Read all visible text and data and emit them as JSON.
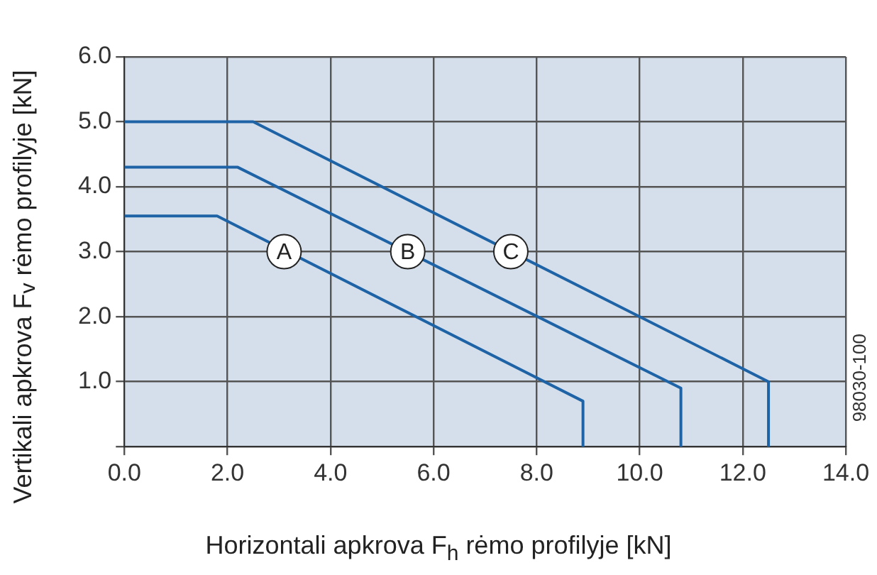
{
  "chart_data": {
    "type": "line",
    "xlabel": "Horizontali apkrova F$_{h}$ rėmo profilyje [kN]",
    "ylabel": "Vertikali apkrova F$_{v}$ rėmo profilyje [kN]",
    "series": [
      {
        "color": "#1d63a6",
        "x": [
          0,
          1.8,
          8.9,
          8.9
        ],
        "values": [
          3.55,
          3.55,
          0.7,
          0
        ]
      },
      {
        "color": "#1d63a6",
        "x": [
          0,
          2.2,
          10.8,
          10.8
        ],
        "values": [
          4.3,
          4.3,
          0.9,
          0
        ]
      },
      {
        "color": "#1d63a6",
        "x": [
          0,
          2.5,
          12.5,
          12.5
        ],
        "values": [
          5.0,
          5.0,
          1.0,
          0
        ]
      }
    ],
    "xlim": [
      0,
      14
    ],
    "ylim": [
      0,
      6
    ],
    "xticks": [
      {
        "value": 0,
        "label": "0.0"
      },
      {
        "value": 2,
        "label": "2.0"
      },
      {
        "value": 4,
        "label": "4.0"
      },
      {
        "value": 6,
        "label": "6.0"
      },
      {
        "value": 8,
        "label": "8.0"
      },
      {
        "value": 10,
        "label": "10.0"
      },
      {
        "value": 12,
        "label": "12.0"
      },
      {
        "value": 14,
        "label": "14.0"
      }
    ],
    "yticks": [
      {
        "value": 0,
        "label": null
      },
      {
        "value": 1,
        "label": "1.0"
      },
      {
        "value": 2,
        "label": "2.0"
      },
      {
        "value": 3,
        "label": "3.0"
      },
      {
        "value": 4,
        "label": "4.0"
      },
      {
        "value": 5,
        "label": "5.0"
      },
      {
        "value": 6,
        "label": "6.0"
      }
    ],
    "grid": true,
    "legend": false,
    "marker": "none",
    "line_style": "solid",
    "annotations": [
      {
        "text": "A",
        "x": 3.1,
        "y": 3.0
      },
      {
        "text": "B",
        "x": 5.5,
        "y": 3.0
      },
      {
        "text": "C",
        "x": 7.5,
        "y": 3.0
      },
      "98030-100"
    ]
  }
}
